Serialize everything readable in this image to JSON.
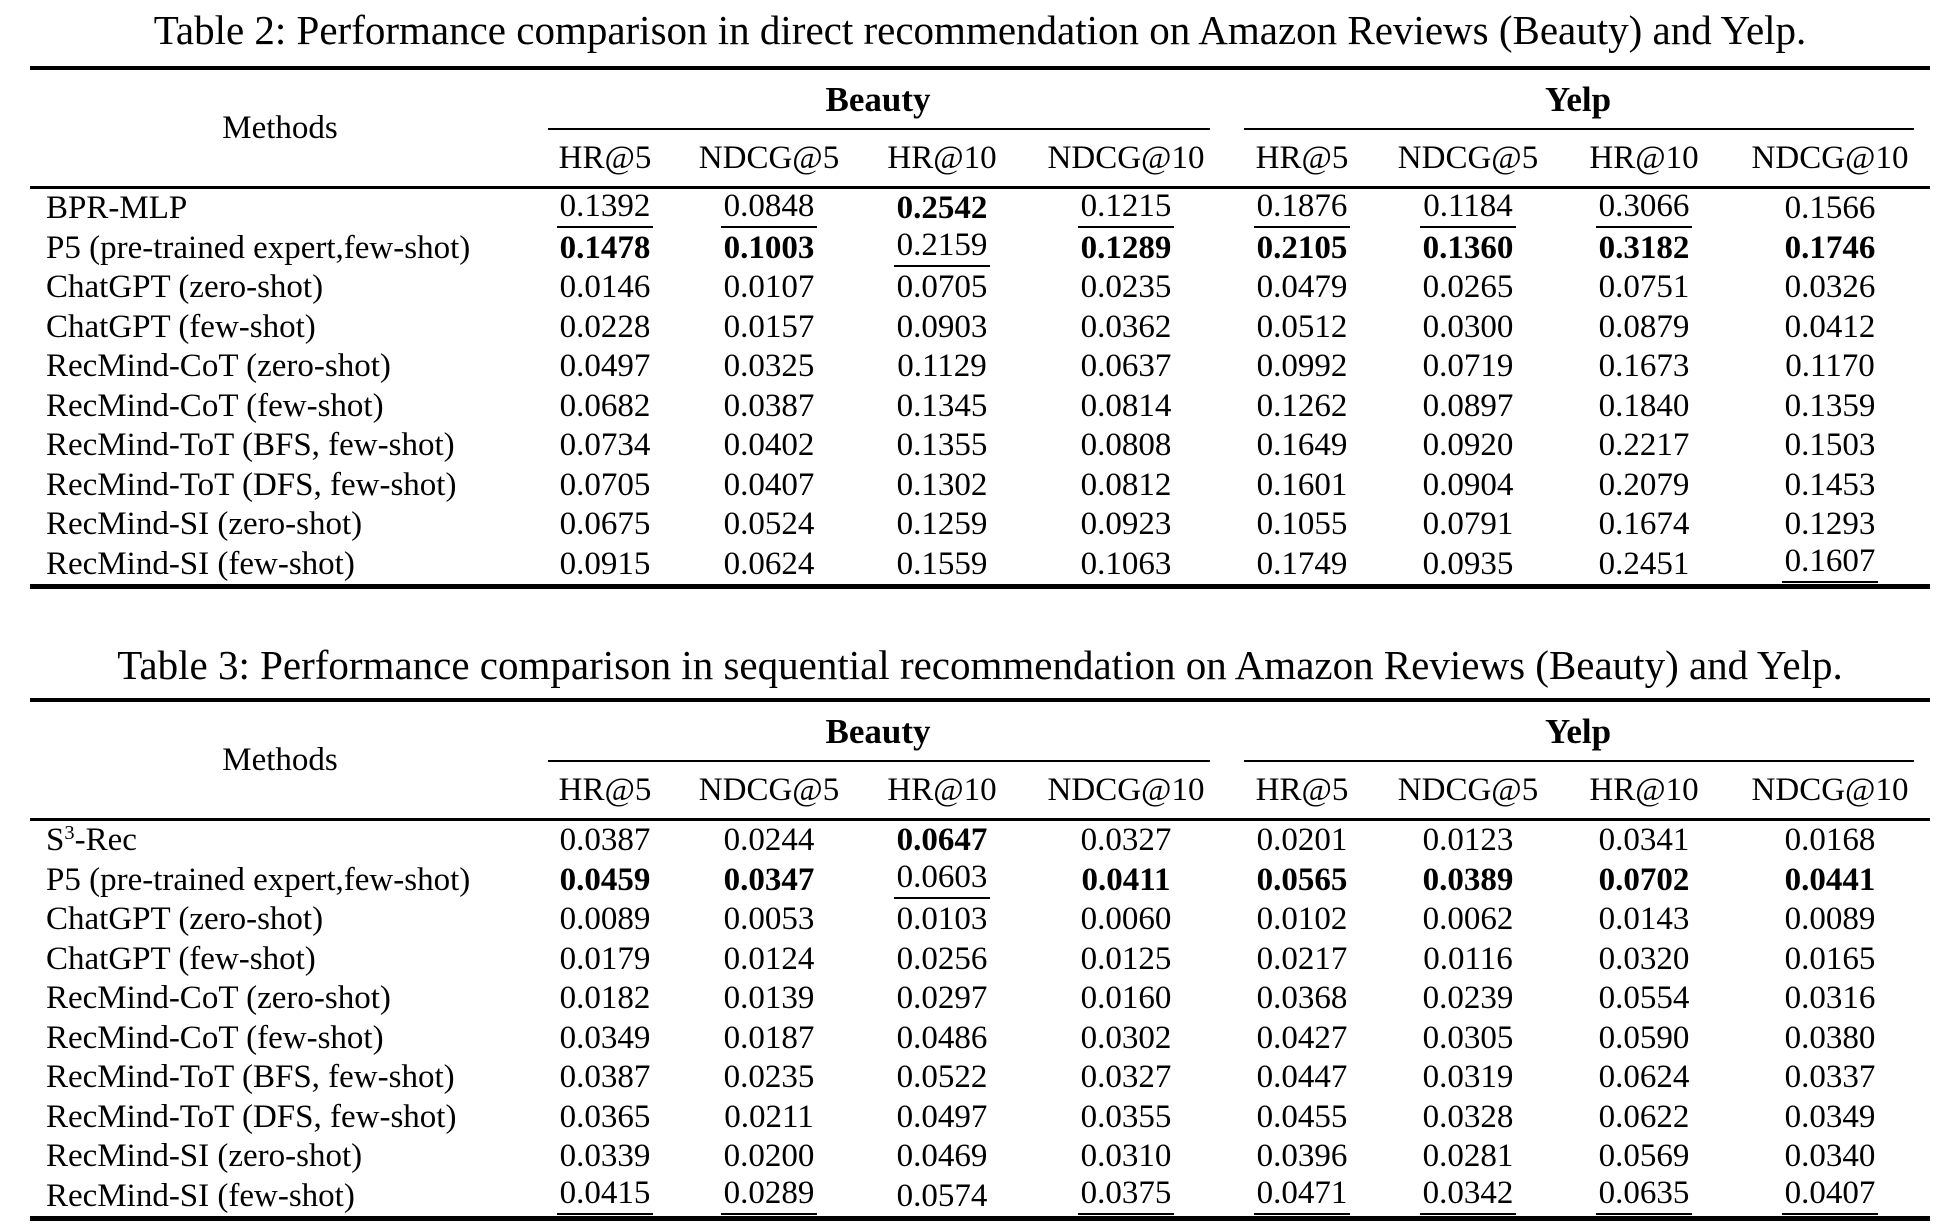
{
  "page": {
    "background": "#ffffff",
    "text_color": "#000000",
    "rule_color": "#000000"
  },
  "tables": [
    {
      "caption": "Table 2: Performance comparison in direct recommendation on Amazon Reviews (Beauty) and Yelp.",
      "methods_header": "Methods",
      "col_groups": [
        {
          "label": "Beauty"
        },
        {
          "label": "Yelp"
        }
      ],
      "metric_headers": [
        "HR@5",
        "NDCG@5",
        "HR@10",
        "NDCG@10",
        "HR@5",
        "NDCG@5",
        "HR@10",
        "NDCG@10"
      ],
      "rows": [
        {
          "method": "BPR-MLP",
          "cells": [
            {
              "v": "0.1392",
              "u": true
            },
            {
              "v": "0.0848",
              "u": true
            },
            {
              "v": "0.2542",
              "b": true
            },
            {
              "v": "0.1215",
              "u": true
            },
            {
              "v": "0.1876",
              "u": true
            },
            {
              "v": "0.1184",
              "u": true
            },
            {
              "v": "0.3066",
              "u": true
            },
            {
              "v": "0.1566"
            }
          ]
        },
        {
          "method": "P5 (pre-trained expert,few-shot)",
          "cells": [
            {
              "v": "0.1478",
              "b": true
            },
            {
              "v": "0.1003",
              "b": true
            },
            {
              "v": "0.2159",
              "u": true
            },
            {
              "v": "0.1289",
              "b": true
            },
            {
              "v": "0.2105",
              "b": true
            },
            {
              "v": "0.1360",
              "b": true
            },
            {
              "v": "0.3182",
              "b": true
            },
            {
              "v": "0.1746",
              "b": true
            }
          ]
        },
        {
          "method": "ChatGPT (zero-shot)",
          "cells": [
            {
              "v": "0.0146"
            },
            {
              "v": "0.0107"
            },
            {
              "v": "0.0705"
            },
            {
              "v": "0.0235"
            },
            {
              "v": "0.0479"
            },
            {
              "v": "0.0265"
            },
            {
              "v": "0.0751"
            },
            {
              "v": "0.0326"
            }
          ]
        },
        {
          "method": "ChatGPT (few-shot)",
          "cells": [
            {
              "v": "0.0228"
            },
            {
              "v": "0.0157"
            },
            {
              "v": "0.0903"
            },
            {
              "v": "0.0362"
            },
            {
              "v": "0.0512"
            },
            {
              "v": "0.0300"
            },
            {
              "v": "0.0879"
            },
            {
              "v": "0.0412"
            }
          ]
        },
        {
          "method": "RecMind-CoT (zero-shot)",
          "cells": [
            {
              "v": "0.0497"
            },
            {
              "v": "0.0325"
            },
            {
              "v": "0.1129"
            },
            {
              "v": "0.0637"
            },
            {
              "v": "0.0992"
            },
            {
              "v": "0.0719"
            },
            {
              "v": "0.1673"
            },
            {
              "v": "0.1170"
            }
          ]
        },
        {
          "method": "RecMind-CoT (few-shot)",
          "cells": [
            {
              "v": "0.0682"
            },
            {
              "v": "0.0387"
            },
            {
              "v": "0.1345"
            },
            {
              "v": "0.0814"
            },
            {
              "v": "0.1262"
            },
            {
              "v": "0.0897"
            },
            {
              "v": "0.1840"
            },
            {
              "v": "0.1359"
            }
          ]
        },
        {
          "method": "RecMind-ToT (BFS, few-shot)",
          "cells": [
            {
              "v": "0.0734"
            },
            {
              "v": "0.0402"
            },
            {
              "v": "0.1355"
            },
            {
              "v": "0.0808"
            },
            {
              "v": "0.1649"
            },
            {
              "v": "0.0920"
            },
            {
              "v": "0.2217"
            },
            {
              "v": "0.1503"
            }
          ]
        },
        {
          "method": "RecMind-ToT (DFS, few-shot)",
          "cells": [
            {
              "v": "0.0705"
            },
            {
              "v": "0.0407"
            },
            {
              "v": "0.1302"
            },
            {
              "v": "0.0812"
            },
            {
              "v": "0.1601"
            },
            {
              "v": "0.0904"
            },
            {
              "v": "0.2079"
            },
            {
              "v": "0.1453"
            }
          ]
        },
        {
          "method": "RecMind-SI (zero-shot)",
          "cells": [
            {
              "v": "0.0675"
            },
            {
              "v": "0.0524"
            },
            {
              "v": "0.1259"
            },
            {
              "v": "0.0923"
            },
            {
              "v": "0.1055"
            },
            {
              "v": "0.0791"
            },
            {
              "v": "0.1674"
            },
            {
              "v": "0.1293"
            }
          ]
        },
        {
          "method": "RecMind-SI (few-shot)",
          "cells": [
            {
              "v": "0.0915"
            },
            {
              "v": "0.0624"
            },
            {
              "v": "0.1559"
            },
            {
              "v": "0.1063"
            },
            {
              "v": "0.1749"
            },
            {
              "v": "0.0935"
            },
            {
              "v": "0.2451"
            },
            {
              "v": "0.1607",
              "u": true
            }
          ]
        }
      ]
    },
    {
      "caption": "Table 3: Performance comparison in sequential recommendation on Amazon Reviews (Beauty) and Yelp.",
      "methods_header": "Methods",
      "col_groups": [
        {
          "label": "Beauty"
        },
        {
          "label": "Yelp"
        }
      ],
      "metric_headers": [
        "HR@5",
        "NDCG@5",
        "HR@10",
        "NDCG@10",
        "HR@5",
        "NDCG@5",
        "HR@10",
        "NDCG@10"
      ],
      "rows": [
        {
          "method": "S|3|-Rec",
          "cells": [
            {
              "v": "0.0387"
            },
            {
              "v": "0.0244"
            },
            {
              "v": "0.0647",
              "b": true
            },
            {
              "v": "0.0327"
            },
            {
              "v": "0.0201"
            },
            {
              "v": "0.0123"
            },
            {
              "v": "0.0341"
            },
            {
              "v": "0.0168"
            }
          ]
        },
        {
          "method": "P5 (pre-trained expert,few-shot)",
          "cells": [
            {
              "v": "0.0459",
              "b": true
            },
            {
              "v": "0.0347",
              "b": true
            },
            {
              "v": "0.0603",
              "u": true
            },
            {
              "v": "0.0411",
              "b": true
            },
            {
              "v": "0.0565",
              "b": true
            },
            {
              "v": "0.0389",
              "b": true
            },
            {
              "v": "0.0702",
              "b": true
            },
            {
              "v": "0.0441",
              "b": true
            }
          ]
        },
        {
          "method": "ChatGPT (zero-shot)",
          "cells": [
            {
              "v": "0.0089"
            },
            {
              "v": "0.0053"
            },
            {
              "v": "0.0103"
            },
            {
              "v": "0.0060"
            },
            {
              "v": "0.0102"
            },
            {
              "v": "0.0062"
            },
            {
              "v": "0.0143"
            },
            {
              "v": "0.0089"
            }
          ]
        },
        {
          "method": "ChatGPT (few-shot)",
          "cells": [
            {
              "v": "0.0179"
            },
            {
              "v": "0.0124"
            },
            {
              "v": "0.0256"
            },
            {
              "v": "0.0125"
            },
            {
              "v": "0.0217"
            },
            {
              "v": "0.0116"
            },
            {
              "v": "0.0320"
            },
            {
              "v": "0.0165"
            }
          ]
        },
        {
          "method": "RecMind-CoT (zero-shot)",
          "cells": [
            {
              "v": "0.0182"
            },
            {
              "v": "0.0139"
            },
            {
              "v": "0.0297"
            },
            {
              "v": "0.0160"
            },
            {
              "v": "0.0368"
            },
            {
              "v": "0.0239"
            },
            {
              "v": "0.0554"
            },
            {
              "v": "0.0316"
            }
          ]
        },
        {
          "method": "RecMind-CoT (few-shot)",
          "cells": [
            {
              "v": "0.0349"
            },
            {
              "v": "0.0187"
            },
            {
              "v": "0.0486"
            },
            {
              "v": "0.0302"
            },
            {
              "v": "0.0427"
            },
            {
              "v": "0.0305"
            },
            {
              "v": "0.0590"
            },
            {
              "v": "0.0380"
            }
          ]
        },
        {
          "method": "RecMind-ToT (BFS, few-shot)",
          "cells": [
            {
              "v": "0.0387"
            },
            {
              "v": "0.0235"
            },
            {
              "v": "0.0522"
            },
            {
              "v": "0.0327"
            },
            {
              "v": "0.0447"
            },
            {
              "v": "0.0319"
            },
            {
              "v": "0.0624"
            },
            {
              "v": "0.0337"
            }
          ]
        },
        {
          "method": "RecMind-ToT (DFS, few-shot)",
          "cells": [
            {
              "v": "0.0365"
            },
            {
              "v": "0.0211"
            },
            {
              "v": "0.0497"
            },
            {
              "v": "0.0355"
            },
            {
              "v": "0.0455"
            },
            {
              "v": "0.0328"
            },
            {
              "v": "0.0622"
            },
            {
              "v": "0.0349"
            }
          ]
        },
        {
          "method": "RecMind-SI (zero-shot)",
          "cells": [
            {
              "v": "0.0339"
            },
            {
              "v": "0.0200"
            },
            {
              "v": "0.0469"
            },
            {
              "v": "0.0310"
            },
            {
              "v": "0.0396"
            },
            {
              "v": "0.0281"
            },
            {
              "v": "0.0569"
            },
            {
              "v": "0.0340"
            }
          ]
        },
        {
          "method": "RecMind-SI (few-shot)",
          "cells": [
            {
              "v": "0.0415",
              "u": true
            },
            {
              "v": "0.0289",
              "u": true
            },
            {
              "v": "0.0574"
            },
            {
              "v": "0.0375",
              "u": true
            },
            {
              "v": "0.0471",
              "u": true
            },
            {
              "v": "0.0342",
              "u": true
            },
            {
              "v": "0.0635",
              "u": true
            },
            {
              "v": "0.0407",
              "u": true
            }
          ]
        }
      ]
    }
  ]
}
